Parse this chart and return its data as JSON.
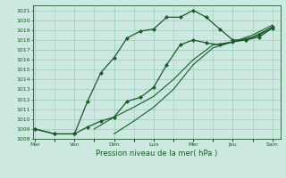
{
  "xlabel": "Pression niveau de la mer( hPa )",
  "bg_color": "#cce8e0",
  "grid_color": "#99ccbb",
  "line_color": "#1a5c28",
  "ylim": [
    1008,
    1021.5
  ],
  "yticks": [
    1008,
    1009,
    1010,
    1011,
    1012,
    1013,
    1014,
    1015,
    1016,
    1017,
    1018,
    1019,
    1020,
    1021
  ],
  "day_labels": [
    "Mar",
    "Ven",
    "Dim",
    "Lun",
    "Mer",
    "Jeu",
    "Sam"
  ],
  "day_positions": [
    0,
    1,
    2,
    3,
    4,
    5,
    6
  ],
  "xlim": [
    -0.05,
    6.2
  ],
  "series1_x": [
    0,
    0.5,
    1.0,
    1.33,
    1.67,
    2.0,
    2.33,
    2.67,
    3.0,
    3.33,
    3.67,
    4.0,
    4.33,
    4.67,
    5.0,
    5.33,
    5.67,
    6.0
  ],
  "series1_y": [
    1009.0,
    1008.5,
    1008.5,
    1011.8,
    1014.7,
    1016.2,
    1018.2,
    1018.9,
    1019.1,
    1020.3,
    1020.3,
    1021.0,
    1020.3,
    1019.1,
    1018.0,
    1018.0,
    1018.3,
    1019.2
  ],
  "series2_x": [
    0,
    0.5,
    1.0,
    1.33,
    1.67,
    2.0,
    2.33,
    2.67,
    3.0,
    3.33,
    3.67,
    4.0,
    4.33,
    4.67,
    5.0,
    5.33,
    5.67,
    6.0
  ],
  "series2_y": [
    1009.0,
    1008.5,
    1008.5,
    1009.2,
    1009.8,
    1010.2,
    1011.8,
    1012.2,
    1013.2,
    1015.5,
    1017.5,
    1018.0,
    1017.7,
    1017.5,
    1017.8,
    1018.0,
    1018.5,
    1019.3
  ],
  "series3_x": [
    1.5,
    2.0,
    2.5,
    3.0,
    3.5,
    4.0,
    4.5,
    5.0,
    5.5,
    6.0
  ],
  "series3_y": [
    1009.0,
    1010.2,
    1011.2,
    1012.3,
    1014.0,
    1016.0,
    1017.5,
    1017.8,
    1018.3,
    1019.3
  ],
  "series4_x": [
    2.0,
    2.5,
    3.0,
    3.5,
    4.0,
    4.5,
    5.0,
    5.5,
    6.0
  ],
  "series4_y": [
    1008.5,
    1009.8,
    1011.2,
    1013.0,
    1015.5,
    1017.2,
    1017.8,
    1018.5,
    1019.5
  ]
}
